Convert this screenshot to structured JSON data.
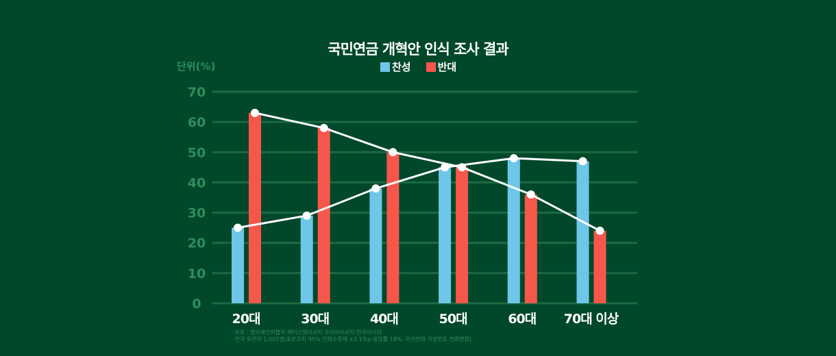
{
  "chart_data": {
    "type": "bar",
    "title": "국민연금 개혁안 인식 조사 결과",
    "ylabel": "단위(%)",
    "ylim": [
      0,
      70
    ],
    "yticks": [
      0,
      10,
      20,
      30,
      40,
      50,
      60,
      70
    ],
    "grid": true,
    "legend_position": "top-center",
    "categories": [
      "20대",
      "30대",
      "40대",
      "50대",
      "60대",
      "70대 이상"
    ],
    "series": [
      {
        "name": "찬성",
        "color": "#6ec6e8",
        "values": [
          25,
          29,
          38,
          45,
          48,
          47
        ]
      },
      {
        "name": "반대",
        "color": "#f7574a",
        "values": [
          63,
          58,
          50,
          45,
          36,
          24
        ]
      }
    ],
    "notes": [
      "- 자료 : 엠브레인퍼블릭·케이스탯리서치·코리아리서치·한국리서치",
      "- 전국 유권자 1,001명(표본오차 95% 신뢰수준에 ±3.1%p·응답률 18%, 무선전화 가상번호 전화면접)"
    ]
  }
}
